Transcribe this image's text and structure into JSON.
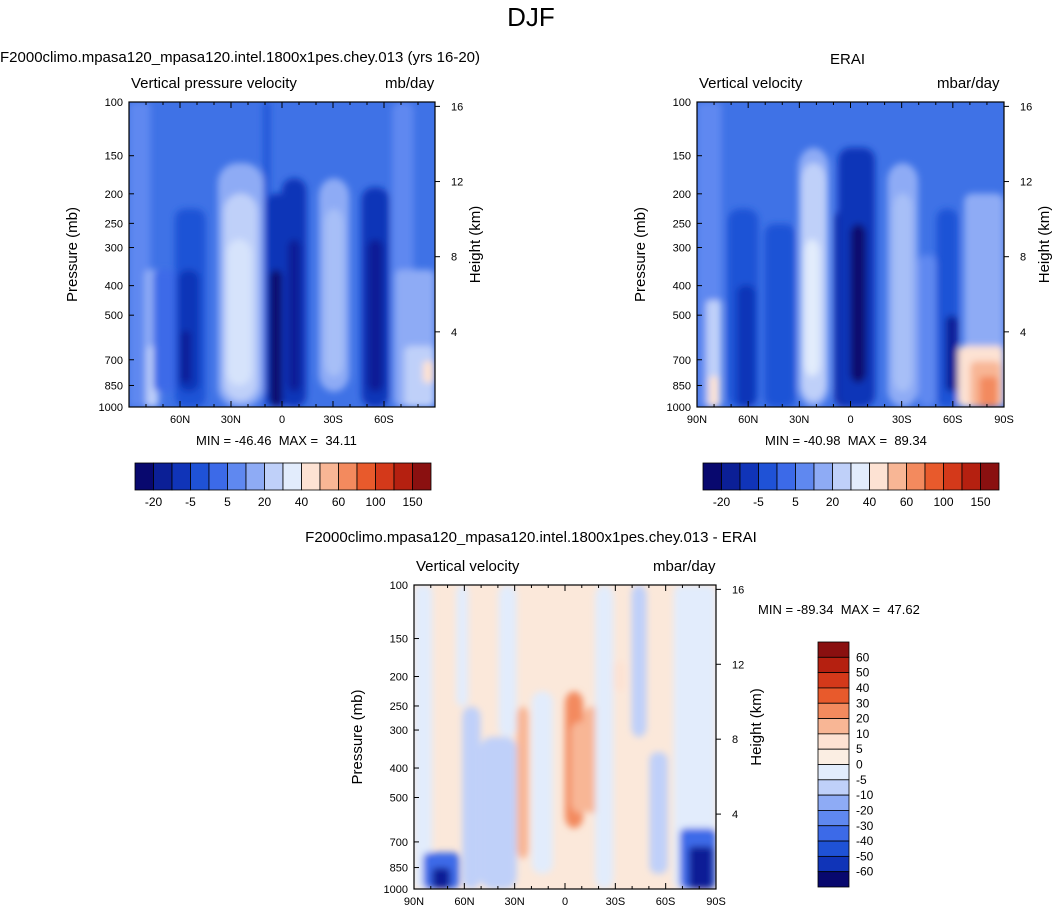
{
  "figure_title": "DJF",
  "panels": [
    {
      "title": "F2000climo.mpasa120_mpasa120.intel.1800x1pes.chey.013 (yrs 16-20)",
      "left_label": "Vertical pressure velocity",
      "right_label": "mb/day",
      "ylabel": "Pressure (mb)",
      "y2label": "Height (km)",
      "xticks": [
        "60N",
        "30N",
        "0",
        "30S",
        "60S"
      ],
      "stats": "MIN = -46.46  MAX =  34.11"
    },
    {
      "title": "ERAI",
      "left_label": "Vertical velocity",
      "right_label": "mbar/day",
      "ylabel": "Pressure (mb)",
      "y2label": "Height (km)",
      "xticks": [
        "90N",
        "60N",
        "30N",
        "0",
        "30S",
        "60S",
        "90S"
      ],
      "stats": "MIN = -40.98  MAX =  89.34"
    },
    {
      "title": "F2000climo.mpasa120_mpasa120.intel.1800x1pes.chey.013 - ERAI",
      "left_label": "Vertical velocity",
      "right_label": "mbar/day",
      "ylabel": "Pressure (mb)",
      "y2label": "Height (km)",
      "xticks": [
        "90N",
        "60N",
        "30N",
        "0",
        "30S",
        "60S",
        "90S"
      ],
      "stats": "MIN = -89.34  MAX =  47.62"
    }
  ],
  "chart_data": [
    {
      "type": "heatmap",
      "title": "F2000climo.mpasa120_mpasa120.intel.1800x1pes.chey.013 (yrs 16-20)",
      "xlabel": "",
      "ylabel": "Pressure (mb)",
      "y2label": "Height (km)",
      "x_ticks": [
        "60N",
        "30N",
        "0",
        "30S",
        "60S"
      ],
      "xlim": [
        -90,
        90
      ],
      "y_ticks": [
        100,
        150,
        200,
        250,
        300,
        400,
        500,
        700,
        850,
        1000
      ],
      "ylim": [
        1000,
        100
      ],
      "y_scale": "log",
      "y2_ticks": [
        4,
        8,
        12,
        16
      ],
      "colorbar_labels": [
        "-20",
        "-5",
        "5",
        "20",
        "40",
        "60",
        "100",
        "150"
      ],
      "colorbar_orientation": "horizontal",
      "min": -46.46,
      "max": 34.11
    },
    {
      "type": "heatmap",
      "title": "ERAI",
      "xlabel": "",
      "ylabel": "Pressure (mb)",
      "y2label": "Height (km)",
      "x_ticks": [
        "90N",
        "60N",
        "30N",
        "0",
        "30S",
        "60S",
        "90S"
      ],
      "xlim": [
        -90,
        90
      ],
      "y_ticks": [
        100,
        150,
        200,
        250,
        300,
        400,
        500,
        700,
        850,
        1000
      ],
      "ylim": [
        1000,
        100
      ],
      "y_scale": "log",
      "y2_ticks": [
        4,
        8,
        12,
        16
      ],
      "colorbar_labels": [
        "-20",
        "-5",
        "5",
        "20",
        "40",
        "60",
        "100",
        "150"
      ],
      "colorbar_orientation": "horizontal",
      "min": -40.98,
      "max": 89.34
    },
    {
      "type": "heatmap",
      "title": "F2000climo.mpasa120_mpasa120.intel.1800x1pes.chey.013 - ERAI",
      "xlabel": "",
      "ylabel": "Pressure (mb)",
      "y2label": "Height (km)",
      "x_ticks": [
        "90N",
        "60N",
        "30N",
        "0",
        "30S",
        "60S",
        "90S"
      ],
      "xlim": [
        -90,
        90
      ],
      "y_ticks": [
        100,
        150,
        200,
        250,
        300,
        400,
        500,
        700,
        850,
        1000
      ],
      "ylim": [
        1000,
        100
      ],
      "y_scale": "log",
      "y2_ticks": [
        4,
        8,
        12,
        16
      ],
      "colorbar_labels": [
        "60",
        "50",
        "40",
        "30",
        "20",
        "10",
        "5",
        "0",
        "-5",
        "-10",
        "-20",
        "-30",
        "-40",
        "-50",
        "-60"
      ],
      "colorbar_orientation": "vertical",
      "min": -89.34,
      "max": 47.62
    }
  ],
  "colors": {
    "abs_scale": [
      "#08086e",
      "#0b1f96",
      "#1034b8",
      "#1f52d6",
      "#3c6ae8",
      "#5f88f0",
      "#8eabf5",
      "#bfd0f9",
      "#e2ecfc",
      "#fde2d3",
      "#f8b695",
      "#f38a5e",
      "#e85a2c",
      "#d4391a",
      "#b52010",
      "#8a1010"
    ],
    "diff_scale": [
      "#8a1010",
      "#b52010",
      "#d4391a",
      "#e85a2c",
      "#f38a5e",
      "#f8b695",
      "#fde2d3",
      "#fbeee3",
      "#e2ecfc",
      "#bfd0f9",
      "#8eabf5",
      "#5f88f0",
      "#3c6ae8",
      "#1f52d6",
      "#1034b8",
      "#08086e"
    ]
  }
}
